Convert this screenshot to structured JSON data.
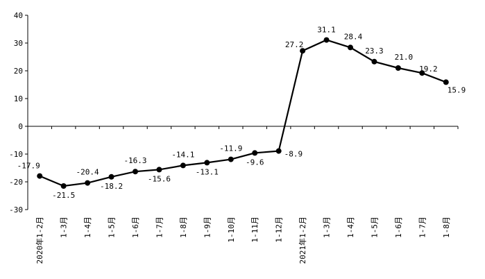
{
  "chart_data": {
    "type": "line",
    "title": "",
    "xlabel": "",
    "ylabel": "",
    "ylim": [
      -30,
      40
    ],
    "yticks": [
      40,
      30,
      20,
      10,
      0,
      -10,
      -20,
      -30
    ],
    "ytick_labels": [
      "40",
      "30",
      "20",
      "10",
      "0",
      "-10",
      "-20",
      "-30"
    ],
    "grid": false,
    "legend": "none",
    "categories": [
      "2020年1-2月",
      "1-3月",
      "1-4月",
      "1-5月",
      "1-6月",
      "1-7月",
      "1-8月",
      "1-9月",
      "1-10月",
      "1-11月",
      "1-12月",
      "2021年1-2月",
      "1-3月",
      "1-4月",
      "1-5月",
      "1-6月",
      "1-7月",
      "1-8月"
    ],
    "series": [
      {
        "values": [
          -17.9,
          -21.5,
          -20.4,
          -18.2,
          -16.3,
          -15.6,
          -14.1,
          -13.1,
          -11.9,
          -9.6,
          -8.9,
          27.2,
          31.1,
          28.4,
          23.3,
          21.0,
          19.2,
          15.9
        ],
        "data_labels": [
          "-17.9",
          "-21.5",
          "-20.4",
          "-18.2",
          "-16.3",
          "-15.6",
          "-14.1",
          "-13.1",
          "-11.9",
          "-9.6",
          "-8.9",
          "27.2",
          "31.1",
          "28.4",
          "23.3",
          "21.0",
          "19.2",
          "15.9"
        ],
        "color": "#000000"
      }
    ]
  }
}
